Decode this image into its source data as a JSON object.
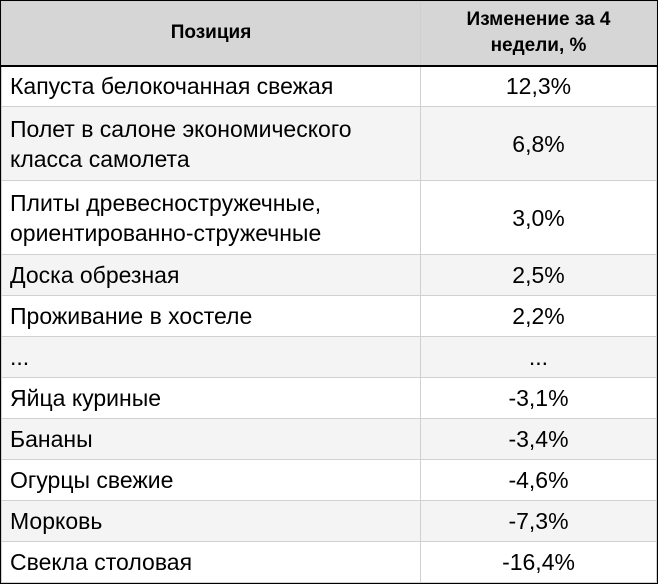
{
  "table": {
    "headers": {
      "position": "Позиция",
      "change": "Изменение за 4 недели, %"
    },
    "rows": [
      {
        "name": "Капуста белокочанная свежая",
        "change": "12,3%"
      },
      {
        "name": "Полет в салоне экономического класса самолета",
        "change": "6,8%"
      },
      {
        "name": "Плиты древесностружечные, ориентированно-стружечные",
        "change": "3,0%"
      },
      {
        "name": "Доска обрезная",
        "change": "2,5%"
      },
      {
        "name": "Проживание в хостеле",
        "change": "2,2%"
      },
      {
        "name": "...",
        "change": "..."
      },
      {
        "name": "Яйца куриные",
        "change": "-3,1%"
      },
      {
        "name": "Бананы",
        "change": "-3,4%"
      },
      {
        "name": "Огурцы свежие",
        "change": "-4,6%"
      },
      {
        "name": "Морковь",
        "change": "-7,3%"
      },
      {
        "name": "Свекла столовая",
        "change": "-16,4%"
      }
    ]
  }
}
